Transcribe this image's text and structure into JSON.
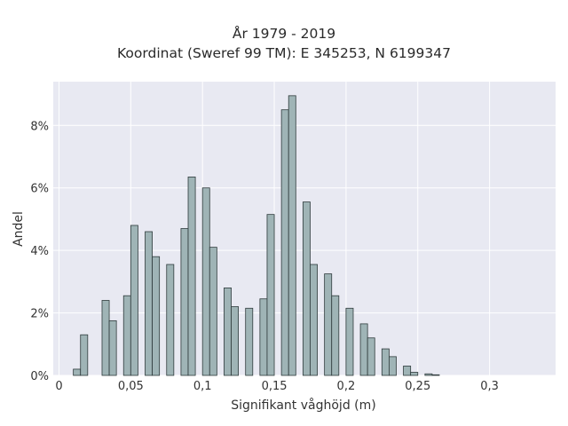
{
  "chart_data": {
    "type": "bar",
    "title": "År 1979 - 2019",
    "subtitle": "Koordinat (Sweref 99 TM): E 345253, N 6199347",
    "xlabel": "Signifikant våghöjd (m)",
    "ylabel": "Andel",
    "xlim": [
      -0.004,
      0.346
    ],
    "ylim": [
      0,
      9.4
    ],
    "x_ticks": [
      0,
      0.05,
      0.1,
      0.15,
      0.2,
      0.25,
      0.3
    ],
    "x_tick_labels": [
      "0",
      "0,05",
      "0,1",
      "0,15",
      "0,2",
      "0,25",
      "0,3"
    ],
    "y_ticks": [
      0,
      2,
      4,
      6,
      8
    ],
    "y_tick_labels": [
      "0%",
      "2%",
      "4%",
      "6%",
      "8%"
    ],
    "grid": true,
    "bar_color": "#9fb4b6",
    "bar_edge_color": "#2f3b3c",
    "background_color": "#e8e9f2",
    "series": [
      {
        "bin_width": 0.005,
        "bins": [
          [
            0.01,
            0.2
          ],
          [
            0.015,
            1.3
          ],
          [
            0.03,
            2.4
          ],
          [
            0.035,
            1.75
          ],
          [
            0.045,
            2.55
          ],
          [
            0.05,
            4.8
          ],
          [
            0.06,
            4.6
          ],
          [
            0.065,
            3.8
          ],
          [
            0.075,
            3.55
          ],
          [
            0.085,
            4.7
          ],
          [
            0.09,
            6.35
          ],
          [
            0.1,
            6.0
          ],
          [
            0.105,
            4.1
          ],
          [
            0.115,
            2.8
          ],
          [
            0.12,
            2.2
          ],
          [
            0.13,
            2.15
          ],
          [
            0.14,
            2.45
          ],
          [
            0.145,
            5.15
          ],
          [
            0.155,
            8.5
          ],
          [
            0.16,
            8.95
          ],
          [
            0.17,
            5.55
          ],
          [
            0.175,
            3.55
          ],
          [
            0.185,
            3.25
          ],
          [
            0.19,
            2.55
          ],
          [
            0.2,
            2.15
          ],
          [
            0.21,
            1.65
          ],
          [
            0.215,
            1.2
          ],
          [
            0.225,
            0.85
          ],
          [
            0.23,
            0.6
          ],
          [
            0.24,
            0.3
          ],
          [
            0.245,
            0.1
          ],
          [
            0.255,
            0.05
          ],
          [
            0.26,
            0.02
          ]
        ]
      }
    ]
  }
}
